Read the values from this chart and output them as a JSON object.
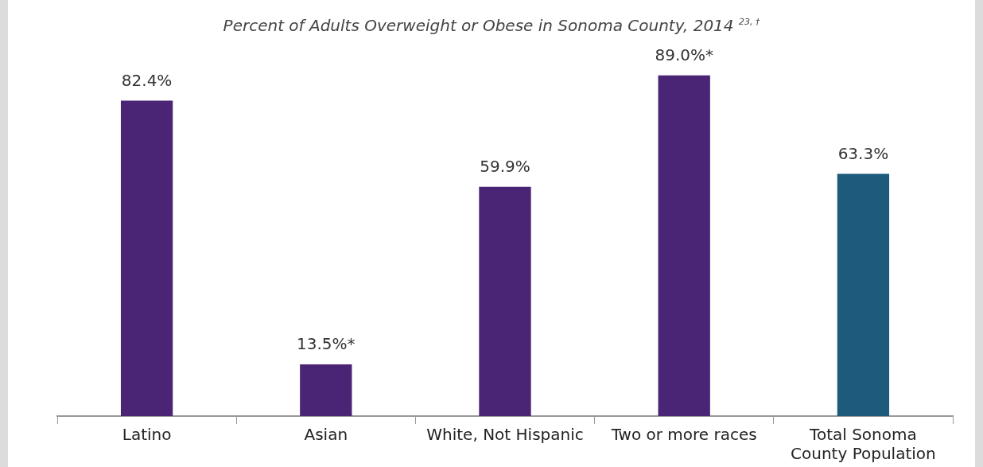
{
  "chart_data": {
    "type": "bar",
    "title": "Percent of Adults Overweight or Obese in Sonoma County, 2014 $^{23, †}$",
    "categories": [
      "Latino",
      "Asian",
      "White, Not Hispanic",
      "Two or more races",
      "Total Sonoma County Population"
    ],
    "values": [
      82.4,
      13.5,
      59.9,
      89.0,
      63.3
    ],
    "colors": [
      "#4a2475",
      "#4a2475",
      "#4a2475",
      "#4a2475",
      "#1e5a7c"
    ],
    "value_labels": [
      "82.4%",
      "13.5%*",
      "59.9%",
      "89.0%*",
      "63.3%"
    ],
    "grid": false,
    "legend": false
  }
}
